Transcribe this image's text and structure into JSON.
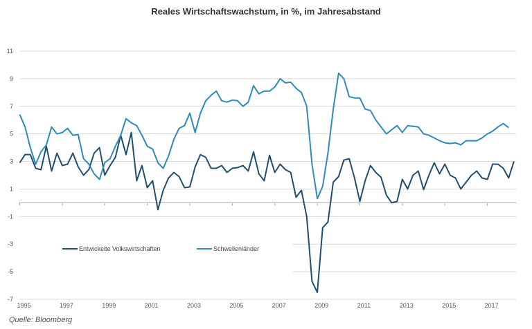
{
  "chart_data": {
    "type": "line",
    "title": "Reales Wirtschaftswachstum, in %, im Jahresabstand",
    "xlabel": "",
    "ylabel": "",
    "source": "Quelle: Bloomberg",
    "x_start_year": 1995,
    "x_frequency": "quarterly",
    "xlim": [
      1995,
      2018.35
    ],
    "ylim": [
      -7,
      11
    ],
    "y_ticks": [
      "11",
      "9",
      "7",
      "5",
      "3",
      "1",
      "-1",
      "-3",
      "-5",
      "-7"
    ],
    "y_tick_values": [
      11,
      9,
      7,
      5,
      3,
      1,
      -1,
      -3,
      -5,
      -7
    ],
    "x_ticks": [
      "1995",
      "1997",
      "1999",
      "2001",
      "2003",
      "2005",
      "2007",
      "2009",
      "2011",
      "2013",
      "2015",
      "2017"
    ],
    "grid": true,
    "legend_placement": "lower-left",
    "series": [
      {
        "name": "Entwickelte Volkswirtschaften",
        "color": "#1f4e6e",
        "values": [
          2.9,
          3.5,
          3.5,
          2.5,
          2.4,
          4.1,
          2.3,
          3.6,
          2.7,
          2.8,
          3.6,
          2.6,
          2.0,
          2.4,
          3.6,
          4.0,
          2.0,
          2.7,
          3.3,
          4.9,
          3.5,
          5.1,
          1.6,
          2.7,
          1.1,
          1.6,
          -0.5,
          0.9,
          1.8,
          2.2,
          1.9,
          1.1,
          1.15,
          2.6,
          3.5,
          3.3,
          2.5,
          2.5,
          2.7,
          2.2,
          2.5,
          2.55,
          2.7,
          2.3,
          3.7,
          2.1,
          1.6,
          3.45,
          2.2,
          2.8,
          2.4,
          2.2,
          0.4,
          0.9,
          -1.0,
          -5.7,
          -6.5,
          -1.8,
          -1.4,
          1.5,
          1.9,
          3.1,
          3.2,
          1.8,
          0.1,
          1.6,
          2.7,
          2.2,
          1.85,
          0.55,
          0.0,
          0.1,
          1.7,
          1.0,
          2.0,
          2.3,
          0.95,
          2.0,
          2.9,
          2.1,
          2.8,
          2.0,
          1.8,
          1.0,
          1.5,
          2.0,
          2.3,
          1.8,
          1.7,
          2.8,
          2.8,
          2.5,
          1.8,
          3.0
        ]
      },
      {
        "name": "Schwellenländer",
        "color": "#2e8bb8",
        "values": [
          6.4,
          5.5,
          4.0,
          2.8,
          3.7,
          4.2,
          5.5,
          5.0,
          5.1,
          5.4,
          4.9,
          4.95,
          3.2,
          2.8,
          2.1,
          1.7,
          2.9,
          3.2,
          4.1,
          4.9,
          6.1,
          5.8,
          5.6,
          4.9,
          4.1,
          3.9,
          2.9,
          2.5,
          3.4,
          4.6,
          5.4,
          5.6,
          6.5,
          5.1,
          6.5,
          7.4,
          7.8,
          8.1,
          7.4,
          7.3,
          7.45,
          7.4,
          7.0,
          7.3,
          8.5,
          7.9,
          8.1,
          8.1,
          8.4,
          9.0,
          8.7,
          8.75,
          8.3,
          8.0,
          7.0,
          2.8,
          0.3,
          1.2,
          3.6,
          6.8,
          9.4,
          9.0,
          7.7,
          7.6,
          7.6,
          6.8,
          6.7,
          6.0,
          5.5,
          5.0,
          5.3,
          5.6,
          5.1,
          5.6,
          5.55,
          5.5,
          5.0,
          4.9,
          4.7,
          4.5,
          4.35,
          4.3,
          4.35,
          4.2,
          4.5,
          4.5,
          4.5,
          4.7,
          5.0,
          5.2,
          5.5,
          5.75,
          5.45
        ]
      }
    ]
  }
}
